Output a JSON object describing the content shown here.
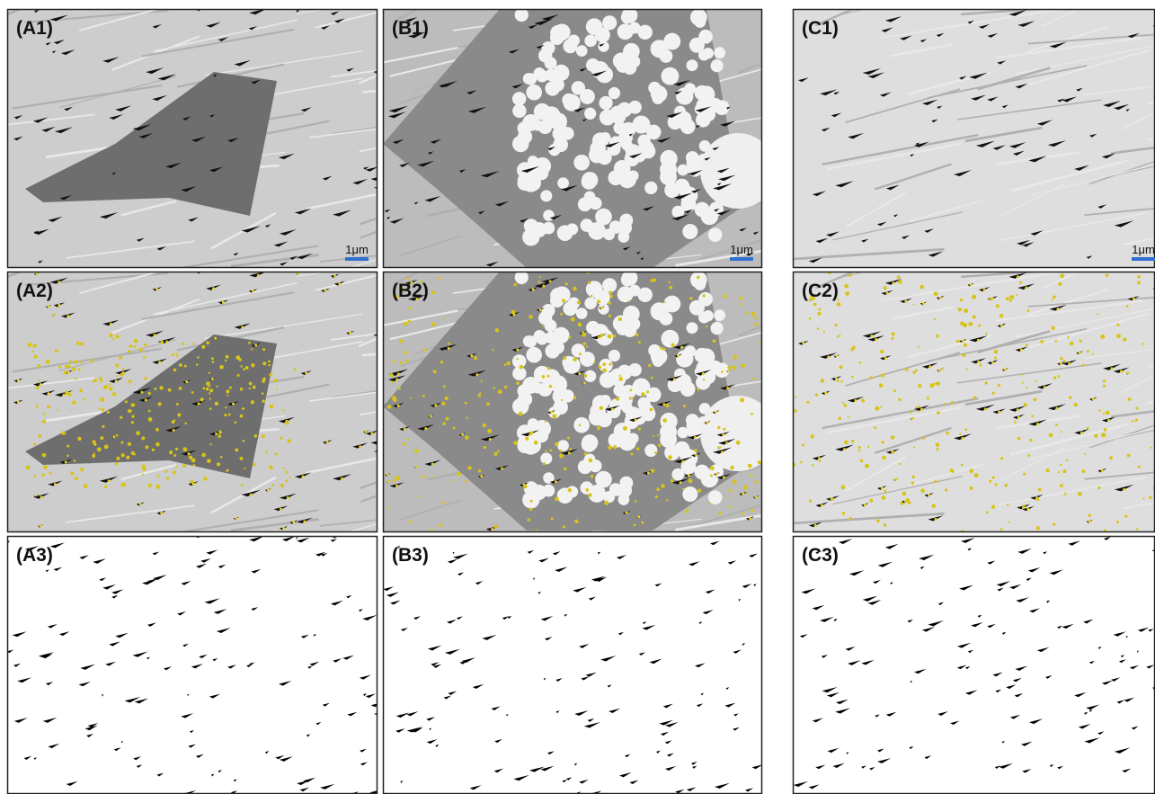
{
  "panels": [
    {
      "label": "(A1)",
      "scale_bar": "1μm"
    },
    {
      "label": "(B1)",
      "scale_bar": "1μm"
    },
    {
      "label": "(C1)",
      "scale_bar": "1μm"
    },
    {
      "label": "(A2)"
    },
    {
      "label": "(B2)"
    },
    {
      "label": "(C2)"
    },
    {
      "label": "(A3)"
    },
    {
      "label": "(B3)"
    },
    {
      "label": "(C3)"
    }
  ]
}
